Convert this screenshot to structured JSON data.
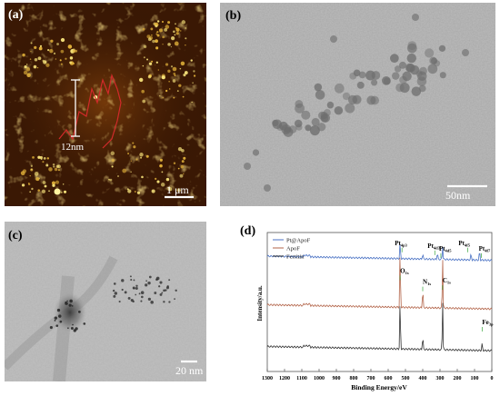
{
  "panel_a": {
    "label": "(a)",
    "height_label": "12nm",
    "scale_label": "1 μm"
  },
  "panel_b": {
    "label": "(b)",
    "scale_label": "50nm"
  },
  "panel_c": {
    "label": "(c)",
    "scale_label": "20 nm"
  },
  "panel_d": {
    "label": "(d)",
    "chart_data": {
      "type": "line",
      "xlabel": "Binding Energy/eV",
      "ylabel": "Intensity/a.u.",
      "xlim": [
        1300,
        0
      ],
      "x_ticks": [
        "1300",
        "1200",
        "1100",
        "1000",
        "900",
        "800",
        "700",
        "600",
        "500",
        "400",
        "300",
        "200",
        "100",
        "0"
      ],
      "legend_placement": "top-left",
      "series": [
        {
          "name": "Pt@ApoF",
          "color": "#4a72c4",
          "baseline": 0.8
        },
        {
          "name": "ApoF",
          "color": "#b3654a",
          "baseline": 0.45
        },
        {
          "name": "Ferritin",
          "color": "#333333",
          "baseline": 0.15
        }
      ],
      "peaks": [
        {
          "series": "Pt@ApoF",
          "x": 531,
          "h": 0.12
        },
        {
          "series": "Pt@ApoF",
          "x": 400,
          "h": 0.04
        },
        {
          "series": "Pt@ApoF",
          "x": 315,
          "h": 0.05
        },
        {
          "series": "Pt@ApoF",
          "x": 285,
          "h": 0.1
        },
        {
          "series": "Pt@ApoF",
          "x": 120,
          "h": 0.05
        },
        {
          "series": "Pt@ApoF",
          "x": 71,
          "h": 0.07
        },
        {
          "series": "ApoF",
          "x": 531,
          "h": 0.42
        },
        {
          "series": "ApoF",
          "x": 400,
          "h": 0.14
        },
        {
          "series": "ApoF",
          "x": 285,
          "h": 0.37
        },
        {
          "series": "Ferritin",
          "x": 531,
          "h": 0.36
        },
        {
          "series": "Ferritin",
          "x": 400,
          "h": 0.1
        },
        {
          "series": "Ferritin",
          "x": 285,
          "h": 0.36
        },
        {
          "series": "Ferritin",
          "x": 56,
          "h": 0.05
        }
      ],
      "annotations": [
        {
          "text": "Pt",
          "sub": "4p3",
          "x": 520
        },
        {
          "text": "Pt",
          "sub": "4d3",
          "x": 330
        },
        {
          "text": "Pt",
          "sub": "4d5",
          "x": 295
        },
        {
          "text": "Pt",
          "sub": "4f5",
          "x": 140
        },
        {
          "text": "Pt",
          "sub": "4f7",
          "x": 60
        },
        {
          "text": "O",
          "sub": "1s",
          "x": 531
        },
        {
          "text": "N",
          "sub": "1s",
          "x": 400
        },
        {
          "text": "C",
          "sub": "1s",
          "x": 285
        },
        {
          "text": "Fe",
          "sub": "3p",
          "x": 56
        }
      ]
    }
  }
}
